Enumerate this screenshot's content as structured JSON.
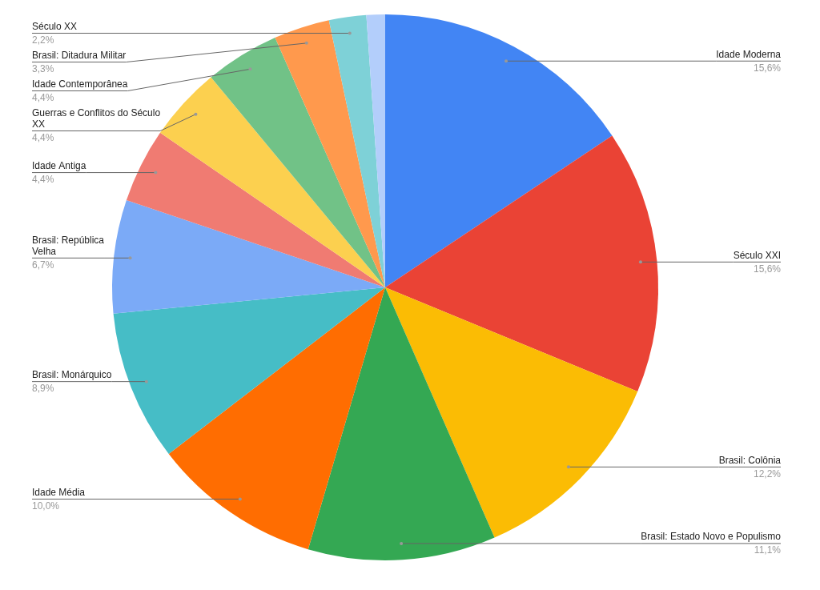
{
  "chart_data": {
    "type": "pie",
    "categories": [
      "Idade Moderna",
      "Século XXI",
      "Brasil: Colônia",
      "Brasil: Estado Novo e Populismo",
      "Idade Média",
      "Brasil: Monárquico",
      "Brasil: República Velha",
      "Idade Antiga",
      "Guerras e Conflitos do Século XX",
      "Idade Contemporânea",
      "Brasil: Ditadura Militar",
      "Século XX",
      null
    ],
    "values": [
      15.6,
      15.6,
      12.2,
      11.1,
      10.0,
      8.9,
      6.7,
      4.4,
      4.4,
      4.4,
      3.3,
      2.2,
      1.1
    ],
    "value_labels": [
      "15,6%",
      "15,6%",
      "12,2%",
      "11,1%",
      "10,0%",
      "8,9%",
      "6,7%",
      "4,4%",
      "4,4%",
      "4,4%",
      "3,3%",
      "2,2%",
      null
    ],
    "colors": [
      "#4285f4",
      "#ea4335",
      "#fbbc04",
      "#34a853",
      "#ff6d01",
      "#46bdc6",
      "#7baaf7",
      "#f07b72",
      "#fcd04f",
      "#71c287",
      "#ff994d",
      "#7ed1d7",
      "#b3cefb"
    ],
    "data_labels": true
  }
}
